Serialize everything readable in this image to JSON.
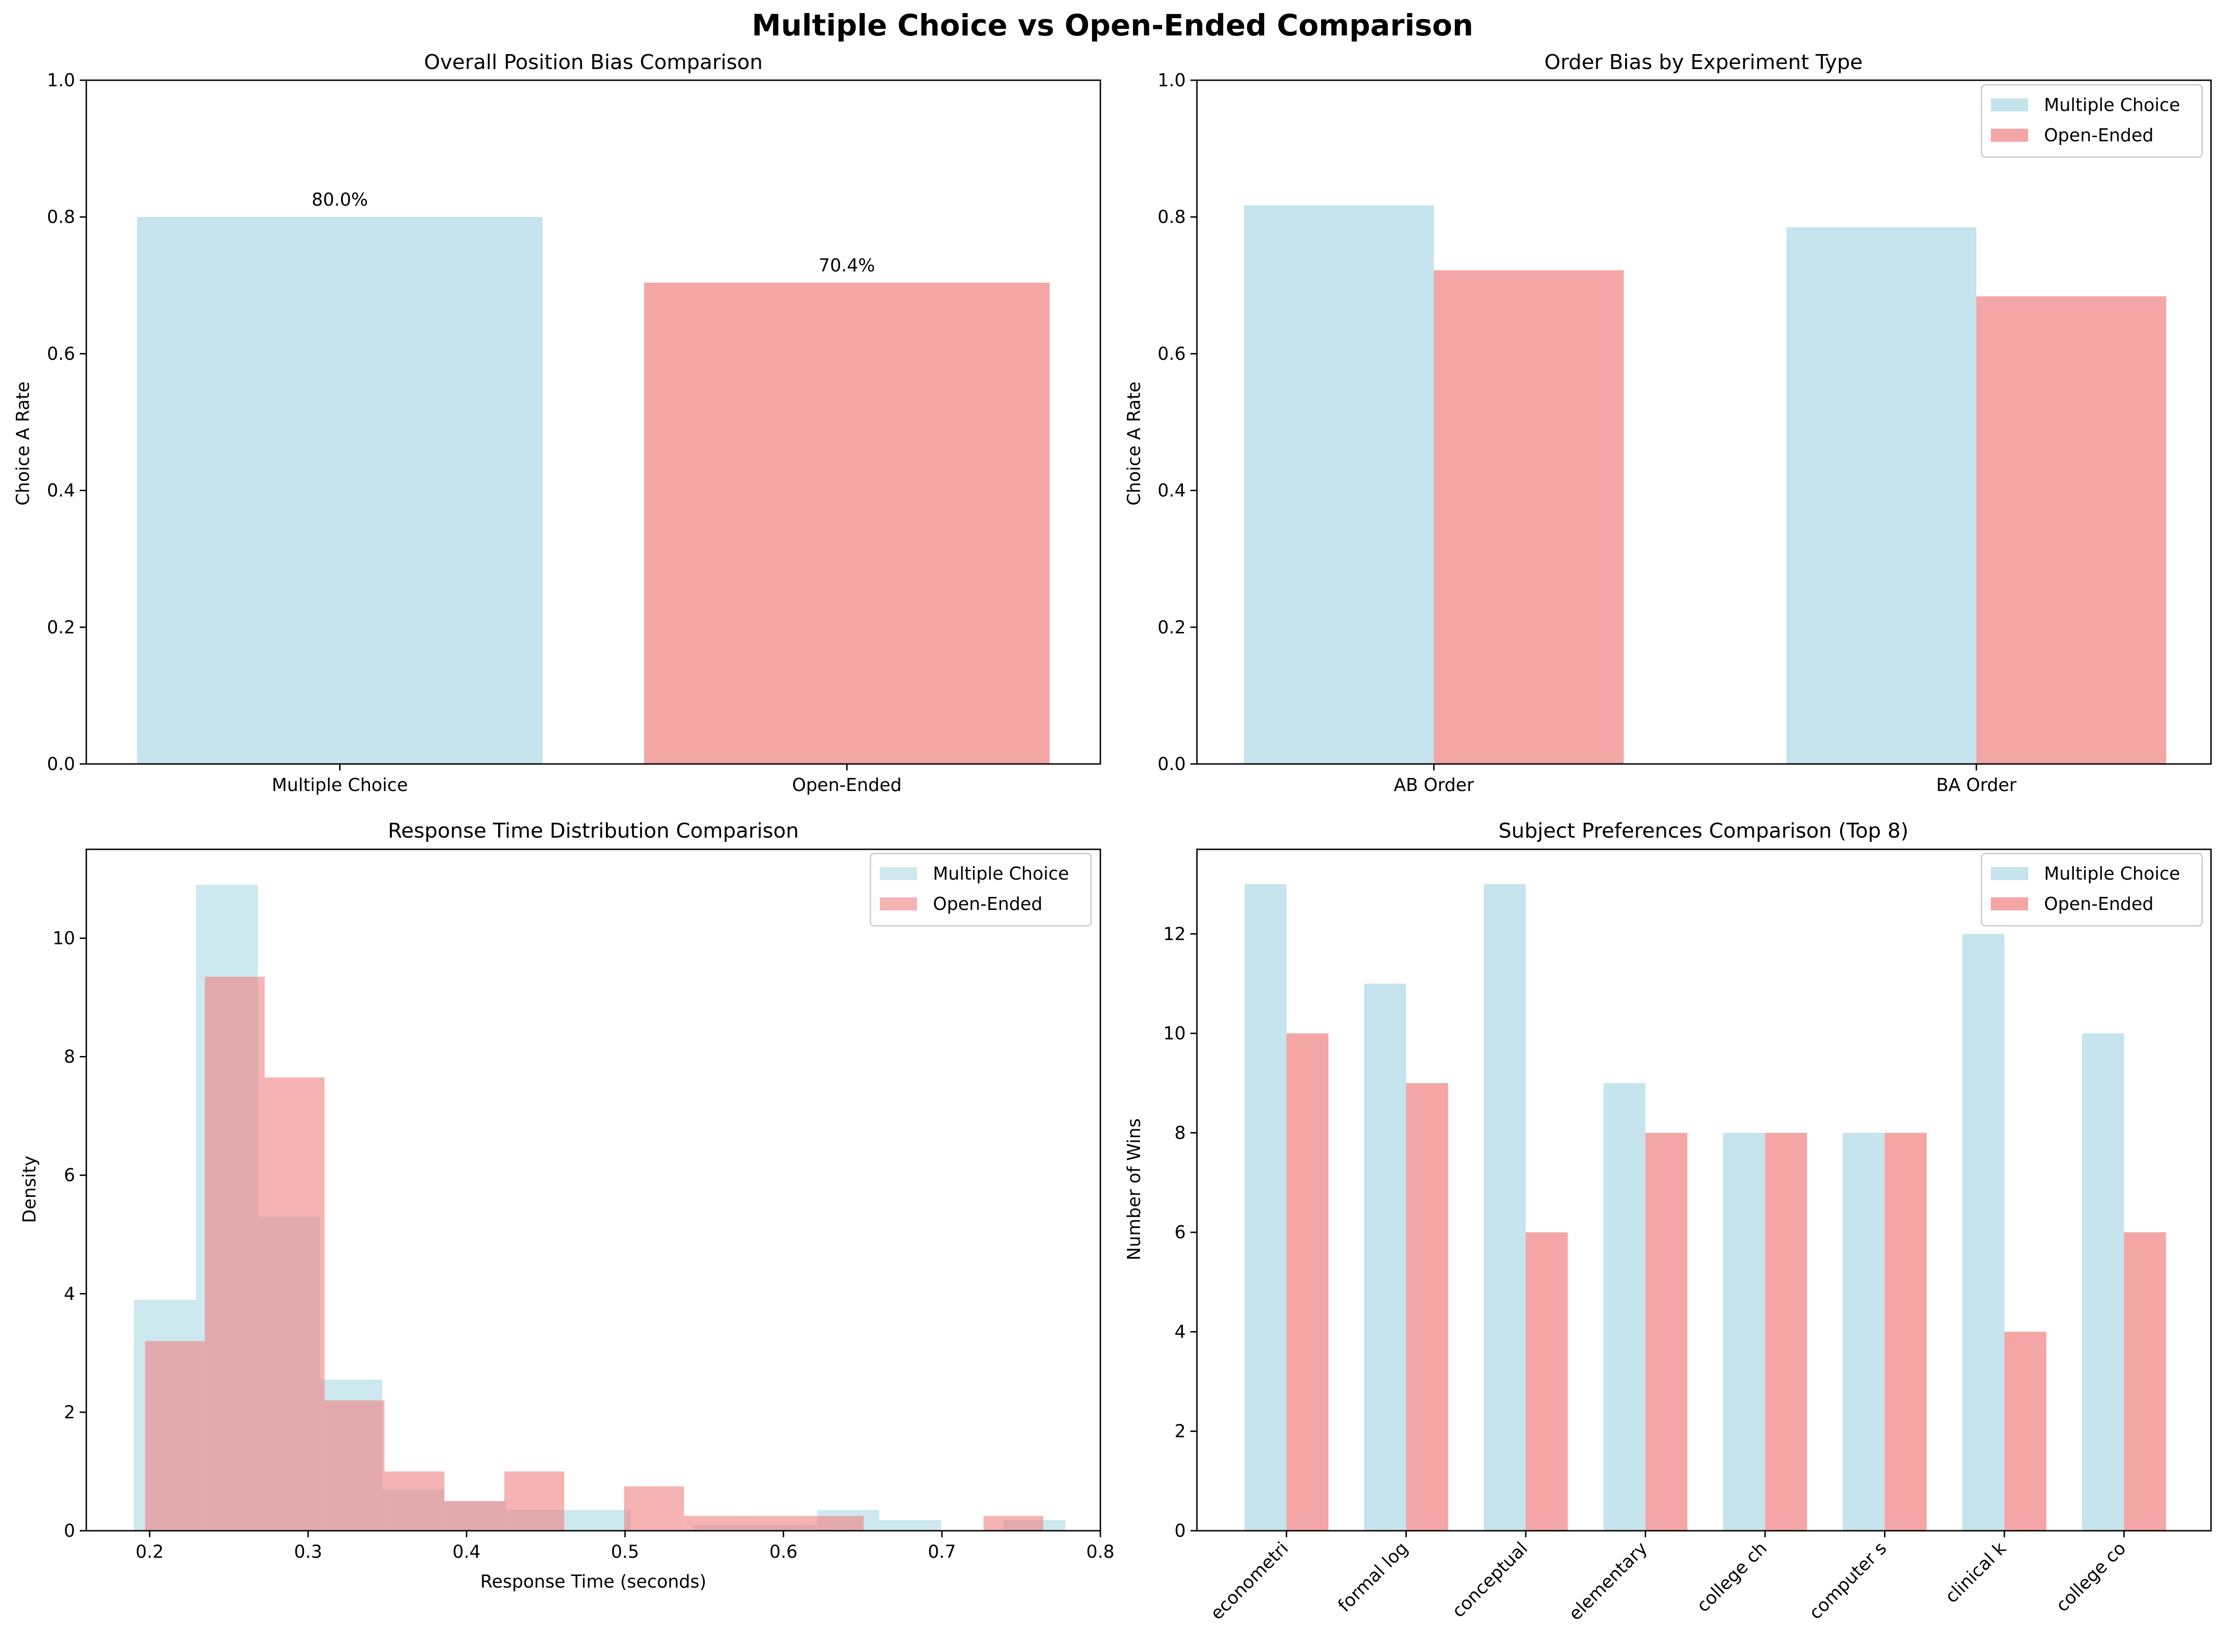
{
  "figure_title": "Multiple Choice vs Open-Ended Comparison",
  "colors": {
    "multiple_choice": "#add8e6",
    "open_ended": "#f08080"
  },
  "chart_data": [
    {
      "type": "bar",
      "title": "Overall Position Bias Comparison",
      "xlabel": "",
      "ylabel": "Choice A Rate",
      "categories": [
        "Multiple Choice",
        "Open-Ended"
      ],
      "values": [
        0.8,
        0.704
      ],
      "data_labels": [
        "80.0%",
        "70.4%"
      ],
      "ylim": [
        0,
        1.0
      ],
      "yticks": [
        "0.0",
        "0.2",
        "0.4",
        "0.6",
        "0.8",
        "1.0"
      ],
      "grid": false
    },
    {
      "type": "bar",
      "title": "Order Bias by Experiment Type",
      "xlabel": "",
      "ylabel": "Choice A Rate",
      "categories": [
        "AB Order",
        "BA Order"
      ],
      "series": [
        {
          "name": "Multiple Choice",
          "values": [
            0.817,
            0.785
          ]
        },
        {
          "name": "Open-Ended",
          "values": [
            0.722,
            0.684
          ]
        }
      ],
      "ylim": [
        0,
        1.0
      ],
      "yticks": [
        "0.0",
        "0.2",
        "0.4",
        "0.6",
        "0.8",
        "1.0"
      ],
      "legend": "top-right",
      "grid": false
    },
    {
      "type": "histogram",
      "title": "Response Time Distribution Comparison",
      "xlabel": "Response Time (seconds)",
      "ylabel": "Density",
      "xlim": [
        0.16,
        0.8
      ],
      "ylim": [
        0,
        11.5
      ],
      "xticks": [
        "0.2",
        "0.3",
        "0.4",
        "0.5",
        "0.6",
        "0.7",
        "0.8"
      ],
      "yticks": [
        "0",
        "2",
        "4",
        "6",
        "8",
        "10"
      ],
      "series": [
        {
          "name": "Multiple Choice",
          "bin_edges": [
            0.19,
            0.2292,
            0.2684,
            0.3076,
            0.3468,
            0.386,
            0.4252,
            0.4644,
            0.5036,
            0.5428,
            0.582,
            0.6212,
            0.6604,
            0.6996,
            0.7388,
            0.778
          ],
          "density": [
            3.9,
            10.9,
            5.3,
            2.55,
            0.7,
            0.5,
            0.35,
            0.35,
            0.0,
            0.1,
            0.1,
            0.35,
            0.18,
            0.0,
            0.18
          ]
        },
        {
          "name": "Open-Ended",
          "bin_edges": [
            0.197,
            0.2348,
            0.2726,
            0.3104,
            0.3482,
            0.386,
            0.4238,
            0.4616,
            0.4994,
            0.5372,
            0.575,
            0.6128,
            0.6506,
            0.6884,
            0.7262,
            0.764
          ],
          "density": [
            3.2,
            9.35,
            7.65,
            2.2,
            1.0,
            0.5,
            1.0,
            0.0,
            0.75,
            0.25,
            0.25,
            0.25,
            0.0,
            0.0,
            0.25
          ]
        }
      ],
      "legend": "top-right",
      "grid": false
    },
    {
      "type": "bar",
      "title": "Subject Preferences Comparison (Top 8)",
      "xlabel": "",
      "ylabel": "Number of Wins",
      "categories": [
        "econometri",
        "formal log",
        "conceptual",
        "elementary",
        "college ch",
        "computer s",
        "clinical k",
        "college co"
      ],
      "series": [
        {
          "name": "Multiple Choice",
          "values": [
            13,
            11,
            13,
            9,
            8,
            8,
            12,
            10
          ]
        },
        {
          "name": "Open-Ended",
          "values": [
            10,
            9,
            6,
            8,
            8,
            8,
            4,
            6
          ]
        }
      ],
      "ylim": [
        0,
        13.7
      ],
      "yticks": [
        "0",
        "2",
        "4",
        "6",
        "8",
        "10",
        "12"
      ],
      "legend": "top-right",
      "grid": false
    }
  ]
}
